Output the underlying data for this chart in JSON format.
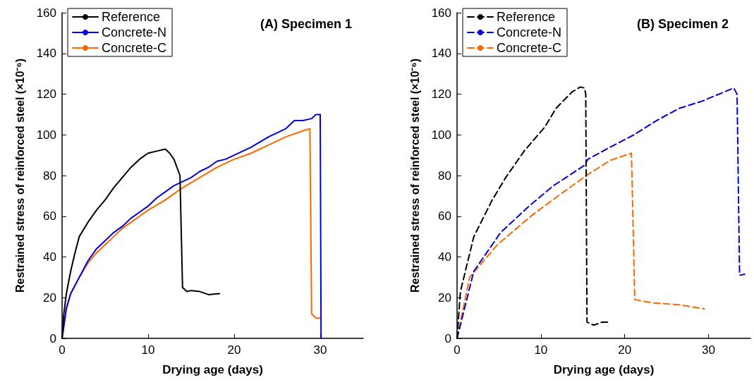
{
  "chart_data": [
    {
      "type": "line",
      "title": "(A) Specimen 1",
      "xlabel": "Drying age (days)",
      "ylabel": "Restrained stress of reinforced steel (×10⁻⁶)",
      "xlim": [
        0,
        35
      ],
      "xticks": [
        0,
        10,
        20,
        30
      ],
      "ylim": [
        0,
        160
      ],
      "yticks": [
        0,
        20,
        40,
        60,
        80,
        100,
        120,
        140,
        160
      ],
      "legend": "top left",
      "grid": false,
      "marker": "none",
      "line_style": "solid",
      "series": [
        {
          "name": "Reference",
          "color": "#000000",
          "x": [
            0,
            0.2,
            0.5,
            1,
            1.5,
            2,
            3,
            4,
            5,
            6,
            7,
            8,
            9,
            10,
            11,
            12,
            12.5,
            13,
            13.7,
            14,
            14.5,
            15,
            16,
            17,
            18.3
          ],
          "values": [
            0,
            12,
            22,
            33,
            42,
            50,
            57,
            63,
            68,
            74,
            79,
            84,
            88,
            91,
            92,
            93,
            91,
            88,
            80,
            25,
            23,
            23.5,
            23,
            21.5,
            22
          ]
        },
        {
          "name": "Concrete-N",
          "color": "#0000dd",
          "x": [
            0,
            0.5,
            1,
            2,
            3,
            4,
            5,
            6,
            7,
            8,
            9,
            10,
            11,
            12,
            13,
            14,
            15,
            16,
            17,
            18,
            19,
            20,
            22,
            24,
            26,
            27,
            28,
            29,
            29.5,
            30,
            30.1
          ],
          "values": [
            0,
            15,
            22,
            30,
            38,
            44,
            48,
            52,
            55,
            59,
            62,
            65,
            69,
            72,
            75,
            77,
            79,
            82,
            84,
            87,
            88,
            90,
            94,
            99,
            103,
            107,
            107,
            108,
            110,
            110,
            0
          ]
        },
        {
          "name": "Concrete-C",
          "color": "#ff6600",
          "x": [
            0,
            0.5,
            1,
            2,
            3,
            4,
            5,
            6,
            7,
            8,
            9,
            10,
            12,
            14,
            16,
            18,
            20,
            22,
            24,
            26,
            28,
            28.8,
            29,
            29.5,
            30
          ],
          "values": [
            0,
            14,
            22,
            30,
            37,
            42,
            46,
            50,
            54,
            57,
            60,
            63,
            68,
            74,
            79,
            84,
            88,
            91,
            95,
            99,
            102,
            103,
            12,
            10,
            10
          ]
        }
      ]
    },
    {
      "type": "line",
      "title": "(B) Specimen 2",
      "xlabel": "Drying age (days)",
      "ylabel": "Restrained stress of reinforced steel (×10⁻⁶)",
      "xlim": [
        0,
        35
      ],
      "xticks": [
        0,
        10,
        20,
        30
      ],
      "ylim": [
        0,
        160
      ],
      "yticks": [
        0,
        20,
        40,
        60,
        80,
        100,
        120,
        140,
        160
      ],
      "legend": "top left",
      "grid": false,
      "marker": "none",
      "line_style": "dashed",
      "series": [
        {
          "name": "Reference",
          "color": "#000000",
          "x": [
            0,
            0.4,
            2,
            4.2,
            5.8,
            8,
            10.5,
            11.8,
            13.7,
            14.7,
            15.2,
            15.35,
            15.5,
            16.3,
            17.3,
            18.1
          ],
          "values": [
            0,
            23,
            50,
            68,
            79,
            92,
            104,
            113,
            121,
            123.5,
            123,
            120,
            8,
            6.5,
            8,
            8
          ]
        },
        {
          "name": "Concrete-N",
          "color": "#0000dd",
          "x": [
            0,
            2,
            5.2,
            8.6,
            11.5,
            15.2,
            15.6,
            18.3,
            21.1,
            23.8,
            26.5,
            29.2,
            33,
            33.4,
            33.7,
            34.3
          ],
          "values": [
            0,
            33,
            52,
            65,
            75,
            85,
            88,
            94,
            100,
            107,
            113,
            116.5,
            123,
            120,
            31,
            31.5
          ]
        },
        {
          "name": "Concrete-C",
          "color": "#ff6600",
          "x": [
            0,
            1.5,
            4.8,
            9.1,
            12.9,
            15.6,
            18.3,
            20.8,
            21.2,
            23.2,
            26.5,
            29.5
          ],
          "values": [
            0,
            30,
            46,
            61,
            72.5,
            80.5,
            87.5,
            91,
            19,
            17.5,
            16.5,
            14.5
          ]
        }
      ]
    }
  ]
}
